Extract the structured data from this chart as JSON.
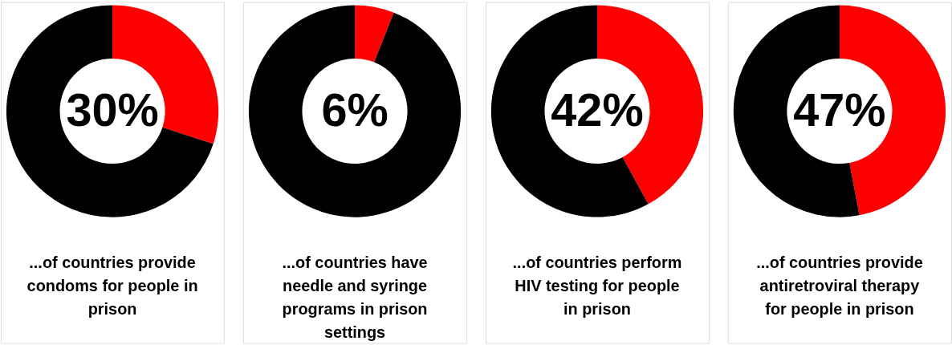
{
  "chart_data": [
    {
      "type": "donut",
      "categories": [
        null,
        null
      ],
      "values": [
        30,
        70
      ],
      "colors": [
        "#ff0000",
        "#000000"
      ],
      "value_labels": [
        "30%",
        null
      ],
      "annotations": [
        "...of countries provide\ncondoms for people in\nprison"
      ]
    },
    {
      "type": "donut",
      "categories": [
        null,
        null
      ],
      "values": [
        6,
        94
      ],
      "colors": [
        "#ff0000",
        "#000000"
      ],
      "value_labels": [
        "6%",
        null
      ],
      "annotations": [
        "...of countries have\nneedle and syringe\nprograms in prison\nsettings"
      ]
    },
    {
      "type": "donut",
      "categories": [
        null,
        null
      ],
      "values": [
        42,
        58
      ],
      "colors": [
        "#ff0000",
        "#000000"
      ],
      "value_labels": [
        "42%",
        null
      ],
      "annotations": [
        "...of countries perform\nHIV testing for people\nin prison"
      ]
    },
    {
      "type": "donut",
      "categories": [
        null,
        null
      ],
      "values": [
        47,
        53
      ],
      "colors": [
        "#ff0000",
        "#000000"
      ],
      "value_labels": [
        "47%",
        null
      ],
      "annotations": [
        "...of countries provide\nantiretroviral therapy\nfor people in prison"
      ]
    }
  ]
}
